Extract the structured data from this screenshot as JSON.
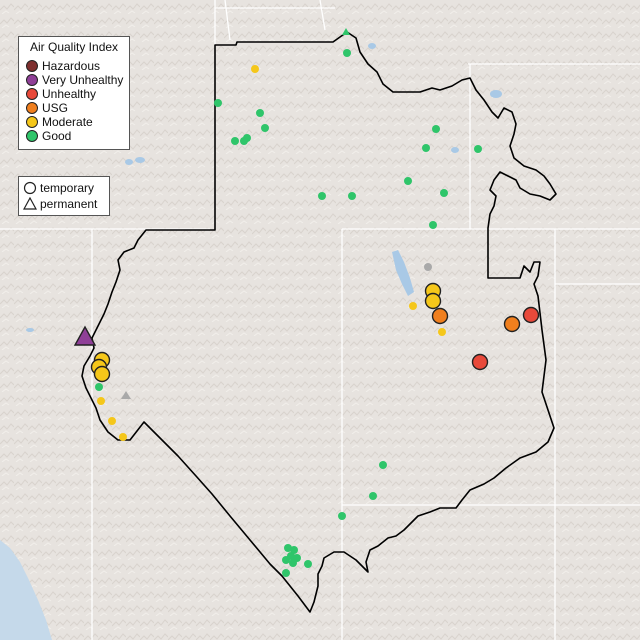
{
  "legend": {
    "title": "Air Quality Index",
    "categories": [
      {
        "label": "Hazardous",
        "color": "#7e2f2e"
      },
      {
        "label": "Very Unhealthy",
        "color": "#8f3f97"
      },
      {
        "label": "Unhealthy",
        "color": "#e8493a"
      },
      {
        "label": "USG",
        "color": "#f07f1e"
      },
      {
        "label": "Moderate",
        "color": "#f5c71a"
      },
      {
        "label": "Good",
        "color": "#2fc56a"
      }
    ]
  },
  "monitor_types": {
    "temporary": "temporary",
    "permanent": "permanent"
  },
  "colors": {
    "land": "#e7e3df",
    "ocean": "#c5d9ea",
    "water": "#a9c9e6",
    "state_border": "#ffffff",
    "region_outline": "#000000",
    "no_data": "#a9a9a9"
  }
}
